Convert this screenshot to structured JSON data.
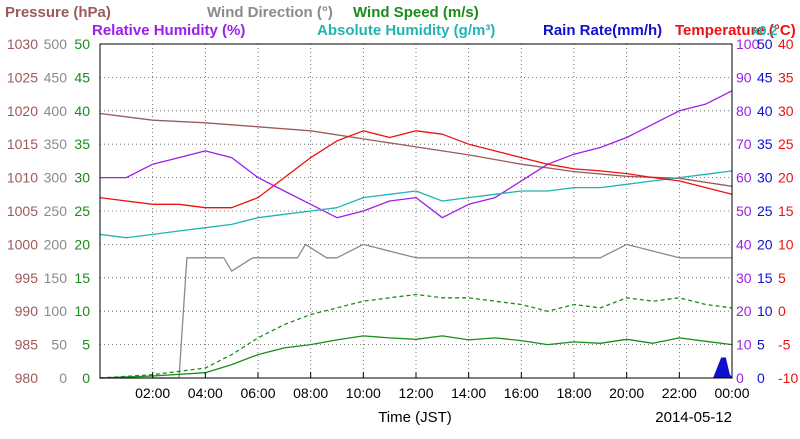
{
  "chart_data": {
    "type": "line",
    "date": "2014-05-12",
    "xlabel": "Time (JST)",
    "x_tick_labels": [
      "02:00",
      "04:00",
      "06:00",
      "08:00",
      "10:00",
      "12:00",
      "14:00",
      "16:00",
      "18:00",
      "20:00",
      "22:00",
      "00:00"
    ],
    "x_range_hours": [
      0,
      24
    ],
    "grid": true,
    "legend_row1": [
      {
        "text": "Pressure (hPa)",
        "color": "#9c5a5a"
      },
      {
        "text": "Wind Direction (°)",
        "color": "#8a8a8a"
      },
      {
        "text": "Wind Speed (m/s)",
        "color": "#1a8c1a"
      }
    ],
    "legend_row2": [
      {
        "text": "Relative Humidity (%)",
        "color": "#9b1fe8"
      },
      {
        "text": "Absolute Humidity (g/m³)",
        "color": "#22b3b3"
      },
      {
        "text": "Rain Rate(mm/h)",
        "color": "#1010cc"
      },
      {
        "text": "Temperature (°C)",
        "color": "#ee1111"
      },
      {
        "text": "x0.2",
        "color": "#22b3b3"
      }
    ],
    "axes": {
      "pressure": {
        "color": "#9c5a5a",
        "range": [
          980,
          1030
        ],
        "ticks": [
          "980",
          "985",
          "990",
          "995",
          "1000",
          "1005",
          "1010",
          "1015",
          "1020",
          "1025",
          "1030"
        ]
      },
      "wind_direction": {
        "color": "#8a8a8a",
        "range": [
          0,
          500
        ],
        "ticks": [
          "0",
          "50",
          "100",
          "150",
          "200",
          "250",
          "300",
          "350",
          "400",
          "450",
          "500"
        ]
      },
      "wind_speed": {
        "color": "#1a8c1a",
        "range": [
          0,
          50
        ],
        "ticks": [
          "0",
          "5",
          "10",
          "15",
          "20",
          "25",
          "30",
          "35",
          "40",
          "45",
          "50"
        ]
      },
      "relative_humidity": {
        "color": "#9b1fe8",
        "range": [
          0,
          100
        ],
        "ticks": [
          "0",
          "10",
          "20",
          "30",
          "40",
          "50",
          "60",
          "70",
          "80",
          "90",
          "100"
        ]
      },
      "rain_rate": {
        "color": "#1010cc",
        "range": [
          0,
          50
        ],
        "ticks": [
          "0",
          "5",
          "10",
          "15",
          "20",
          "25",
          "30",
          "35",
          "40",
          "45",
          "50"
        ]
      },
      "temperature": {
        "color": "#ee1111",
        "range": [
          -10,
          40
        ],
        "ticks": [
          "-10",
          "-5",
          "0",
          "5",
          "10",
          "15",
          "20",
          "25",
          "30",
          "35",
          "40"
        ]
      }
    },
    "series": [
      {
        "name": "Pressure",
        "axis": "pressure",
        "color": "#9c5a5a",
        "style": "solid",
        "x": [
          0,
          2,
          4,
          6,
          8,
          10,
          12,
          14,
          16,
          18,
          20,
          22,
          24
        ],
        "y": [
          1019.6,
          1018.6,
          1018.2,
          1017.6,
          1017.0,
          1015.8,
          1014.6,
          1013.4,
          1012.0,
          1010.9,
          1010.2,
          1009.9,
          1008.7
        ]
      },
      {
        "name": "Wind Direction",
        "axis": "wind_direction",
        "color": "#8a8a8a",
        "style": "solid",
        "x": [
          0,
          3.0,
          3.3,
          4.7,
          5.0,
          5.8,
          6.5,
          7.5,
          7.8,
          8.6,
          9.0,
          10,
          12,
          14,
          16,
          18,
          19,
          20,
          22,
          23,
          24
        ],
        "y": [
          0,
          0,
          180,
          180,
          160,
          180,
          180,
          180,
          200,
          180,
          180,
          200,
          180,
          180,
          180,
          180,
          180,
          200,
          180,
          180,
          180
        ]
      },
      {
        "name": "Wind Speed",
        "axis": "wind_speed",
        "color": "#1a8c1a",
        "style": "solid",
        "x": [
          0,
          2,
          4,
          5,
          6,
          7,
          8,
          9,
          10,
          11,
          12,
          13,
          14,
          15,
          16,
          17,
          18,
          19,
          20,
          21,
          22,
          23,
          24
        ],
        "y": [
          0,
          0.3,
          0.8,
          2.0,
          3.5,
          4.5,
          5.0,
          5.7,
          6.3,
          6.0,
          5.8,
          6.3,
          5.7,
          6.0,
          5.6,
          5.0,
          5.4,
          5.2,
          5.8,
          5.2,
          6.0,
          5.5,
          5.0
        ]
      },
      {
        "name": "Wind Speed (dashed)",
        "axis": "wind_speed",
        "color": "#1a8c1a",
        "style": "dashed",
        "x": [
          0,
          2,
          4,
          5,
          6,
          7,
          8,
          9,
          10,
          11,
          12,
          13,
          14,
          15,
          16,
          17,
          18,
          19,
          20,
          21,
          22,
          23,
          24
        ],
        "y": [
          0,
          0.5,
          1.5,
          3.5,
          6,
          8,
          9.5,
          10.5,
          11.5,
          12,
          12.5,
          12,
          12,
          11.5,
          11,
          10,
          11,
          10.5,
          12,
          11.5,
          12,
          11,
          10.5
        ]
      },
      {
        "name": "Relative Humidity",
        "axis": "relative_humidity",
        "color": "#9b1fe8",
        "style": "solid",
        "x": [
          0,
          1,
          2,
          3,
          4,
          5,
          6,
          7,
          8,
          9,
          10,
          11,
          12,
          13,
          14,
          15,
          16,
          17,
          18,
          19,
          20,
          21,
          22,
          23,
          24
        ],
        "y": [
          60,
          60,
          64,
          66,
          68,
          66,
          60,
          56,
          52,
          48,
          50,
          53,
          54,
          48,
          52,
          54,
          59,
          64,
          67,
          69,
          72,
          76,
          80,
          82,
          86
        ]
      },
      {
        "name": "Absolute Humidity",
        "axis": "relative_humidity",
        "color": "#22b3b3",
        "style": "solid",
        "x": [
          0,
          1,
          2,
          3,
          4,
          5,
          6,
          7,
          8,
          9,
          10,
          11,
          12,
          13,
          14,
          15,
          16,
          17,
          18,
          19,
          20,
          21,
          22,
          23,
          24
        ],
        "y": [
          43,
          42,
          43,
          44,
          45,
          46,
          48,
          49,
          50,
          51,
          54,
          55,
          56,
          53,
          54,
          55,
          56,
          56,
          57,
          57,
          58,
          59,
          60,
          61,
          62
        ]
      },
      {
        "name": "Temperature",
        "axis": "temperature",
        "color": "#ee1111",
        "style": "solid",
        "x": [
          0,
          1,
          2,
          3,
          4,
          5,
          6,
          7,
          8,
          9,
          10,
          11,
          12,
          13,
          14,
          15,
          16,
          17,
          18,
          19,
          20,
          21,
          22,
          23,
          24
        ],
        "y": [
          17,
          16.5,
          16,
          16,
          15.5,
          15.5,
          17,
          20,
          23,
          25.5,
          27,
          26,
          27,
          26.5,
          25,
          24,
          23,
          22,
          21.3,
          21,
          20.6,
          20,
          19.5,
          18.5,
          17.5
        ]
      },
      {
        "name": "Rain Rate",
        "axis": "rain_rate",
        "color": "#1010cc",
        "style": "area",
        "x": [
          0,
          23.3,
          23.45,
          23.6,
          23.75,
          23.9,
          24
        ],
        "y": [
          0,
          0,
          1.5,
          3.0,
          3.0,
          0.5,
          0
        ]
      }
    ]
  }
}
